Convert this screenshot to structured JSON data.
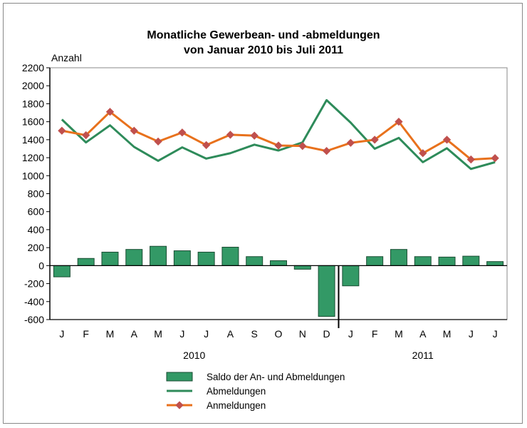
{
  "chart_data": {
    "type": "bar+line",
    "title": "Monatliche Gewerbean- und -abmeldungen",
    "subtitle": "von Januar 2010 bis Juli 2011",
    "ylabel": "Anzahl",
    "ylim": [
      -600,
      2200
    ],
    "yticks": [
      -600,
      -400,
      -200,
      0,
      200,
      400,
      600,
      800,
      1000,
      1200,
      1400,
      1600,
      1800,
      2000,
      2200
    ],
    "categories": [
      "J",
      "F",
      "M",
      "A",
      "M",
      "J",
      "J",
      "A",
      "S",
      "O",
      "N",
      "D",
      "J",
      "F",
      "M",
      "A",
      "M",
      "J",
      "J"
    ],
    "years": [
      {
        "label": "2010",
        "months": 12
      },
      {
        "label": "2011",
        "months": 7
      }
    ],
    "grid": false,
    "legend": "bottom",
    "series": [
      {
        "name": "Saldo der An- und Abmeldungen",
        "type": "bar",
        "color": "#339966",
        "values": [
          -125,
          80,
          150,
          180,
          215,
          165,
          150,
          205,
          100,
          55,
          -40,
          -565,
          -225,
          100,
          180,
          100,
          95,
          105,
          45
        ]
      },
      {
        "name": "Abmeldungen",
        "type": "line",
        "color": "#2e8b5a",
        "values": [
          1625,
          1370,
          1560,
          1320,
          1165,
          1315,
          1190,
          1250,
          1345,
          1280,
          1370,
          1840,
          1590,
          1300,
          1420,
          1150,
          1305,
          1075,
          1150
        ]
      },
      {
        "name": "Anmeldungen",
        "type": "line",
        "color": "#e8711c",
        "marker_color": "#c0504d",
        "values": [
          1500,
          1450,
          1710,
          1500,
          1380,
          1480,
          1340,
          1455,
          1445,
          1335,
          1330,
          1275,
          1365,
          1400,
          1600,
          1250,
          1400,
          1180,
          1195
        ]
      }
    ]
  }
}
